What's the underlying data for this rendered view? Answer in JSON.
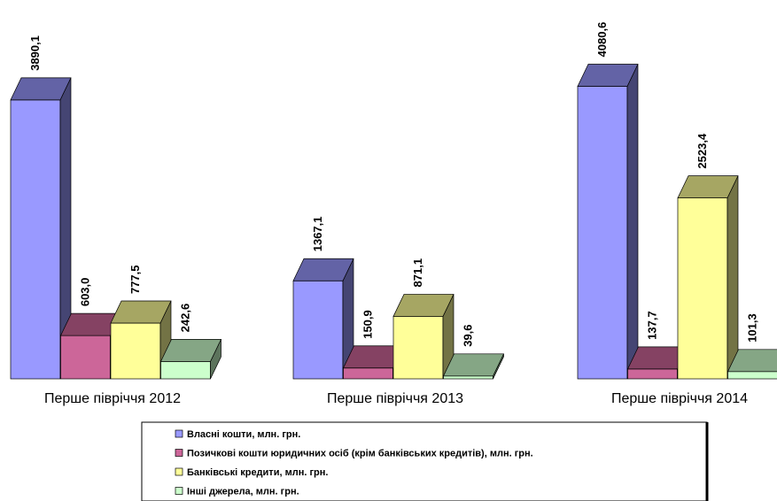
{
  "chart_data": {
    "type": "bar3d",
    "categories": [
      "Перше півріччя 2012",
      "Перше півріччя 2013",
      "Перше півріччя 2014"
    ],
    "series": [
      {
        "name": "Власні кошти, млн. грн.",
        "color": "#9999ff",
        "values": [
          3890.1,
          1367.1,
          4080.6
        ],
        "value_labels": [
          "3890,1",
          "1367,1",
          "4080,6"
        ]
      },
      {
        "name": "Позичкові кошти юридичних осіб (крім банківських кредитів), млн. грн.",
        "color": "#cc6699",
        "values": [
          603.0,
          150.9,
          137.7
        ],
        "value_labels": [
          "603,0",
          "150,9",
          "137,7"
        ]
      },
      {
        "name": "Банківські кредити, млн. грн.",
        "color": "#ffff99",
        "values": [
          777.5,
          871.1,
          2523.4
        ],
        "value_labels": [
          "777,5",
          "871,1",
          "2523,4"
        ]
      },
      {
        "name": "Інші джерела, млн. грн.",
        "color": "#ccffcc",
        "values": [
          242.6,
          39.6,
          101.3
        ],
        "value_labels": [
          "242,6",
          "39,6",
          "101,3"
        ]
      }
    ],
    "legend": "bottom"
  }
}
